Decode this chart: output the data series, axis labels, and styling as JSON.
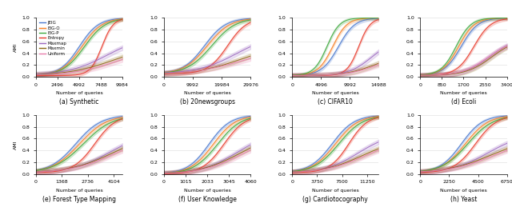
{
  "subplots": [
    {
      "label": "(a) Synthetic",
      "xlabel": "Number of queries",
      "xticks": [
        0,
        2496,
        4992,
        7488,
        9984
      ],
      "xmax": 9984
    },
    {
      "label": "(b) 20newsgroups",
      "xlabel": "Number of queries",
      "xticks": [
        0,
        9992,
        19984,
        29976
      ],
      "xmax": 29976
    },
    {
      "label": "(c) CIFAR10",
      "xlabel": "Number of queries",
      "xticks": [
        0,
        4996,
        9992,
        14988
      ],
      "xmax": 14988
    },
    {
      "label": "(d) Ecoli",
      "xlabel": "Number of queries",
      "xticks": [
        0,
        850,
        1700,
        2550,
        3400
      ],
      "xmax": 3400
    },
    {
      "label": "(e) Forest Type Mapping",
      "xlabel": "Number of queries",
      "xticks": [
        0,
        1368,
        2736,
        4104
      ],
      "xmax": 4560
    },
    {
      "label": "(f) User Knowledge",
      "xlabel": "Number of queries",
      "xticks": [
        0,
        1015,
        2033,
        3045,
        4060
      ],
      "xmax": 4060
    },
    {
      "label": "(g) Cardiotocography",
      "xlabel": "Number of queries",
      "xticks": [
        0,
        3750,
        7500,
        11250
      ],
      "xmax": 13000
    },
    {
      "label": "(h) Yeast",
      "xlabel": "Number of queries",
      "xticks": [
        0,
        2250,
        4500,
        6750
      ],
      "xmax": 6750
    }
  ],
  "methods": [
    "JEIG",
    "EIG-O",
    "EIG-P",
    "Entropy",
    "Maxmap",
    "Maxmin",
    "Uniform"
  ],
  "colors": {
    "JEIG": "#4878cf",
    "EIG-O": "#f87f22",
    "EIG-P": "#3ca73c",
    "Entropy": "#e8392a",
    "Maxmap": "#9b68c0",
    "Maxmin": "#8b6914",
    "Uniform": "#e87eac"
  },
  "ylim": [
    0.0,
    1.0
  ],
  "yticks": [
    0.0,
    0.2,
    0.4,
    0.6,
    0.8,
    1.0
  ],
  "subplot_params": [
    {
      "JEIG": [
        5000,
        0.0009,
        1.0,
        0.02
      ],
      "EIG-O": [
        5300,
        0.00085,
        1.0,
        0.02
      ],
      "EIG-P": [
        5600,
        0.00082,
        1.0,
        0.02
      ],
      "Entropy": [
        7600,
        0.0015,
        1.0,
        0.02
      ],
      "Maxmap": [
        8200,
        0.00045,
        0.7,
        0.03
      ],
      "Maxmin": [
        9000,
        0.00038,
        0.55,
        0.02
      ],
      "Uniform": [
        9300,
        0.0004,
        0.5,
        0.02
      ]
    },
    {
      "JEIG": [
        14000,
        0.00027,
        1.0,
        0.05
      ],
      "EIG-O": [
        15000,
        0.00025,
        1.0,
        0.05
      ],
      "EIG-P": [
        16500,
        0.00024,
        1.0,
        0.05
      ],
      "Entropy": [
        22000,
        0.0003,
        1.0,
        0.05
      ],
      "Maxmap": [
        25000,
        0.00015,
        0.73,
        0.05
      ],
      "Maxmin": [
        26500,
        0.00013,
        0.55,
        0.04
      ],
      "Uniform": [
        27000,
        0.00012,
        0.5,
        0.04
      ]
    },
    {
      "JEIG": [
        8000,
        0.0007,
        1.0,
        0.02
      ],
      "EIG-O": [
        7000,
        0.0008,
        1.0,
        0.02
      ],
      "EIG-P": [
        6000,
        0.0009,
        1.0,
        0.02
      ],
      "Entropy": [
        11500,
        0.001,
        1.0,
        0.02
      ],
      "Maxmap": [
        13800,
        0.0005,
        0.65,
        0.02
      ],
      "Maxmin": [
        14200,
        0.0004,
        0.38,
        0.02
      ],
      "Uniform": [
        14400,
        0.0004,
        0.35,
        0.02
      ]
    },
    {
      "JEIG": [
        1600,
        0.003,
        1.0,
        0.02
      ],
      "EIG-O": [
        1500,
        0.0032,
        1.0,
        0.02
      ],
      "EIG-P": [
        1400,
        0.0034,
        1.0,
        0.02
      ],
      "Entropy": [
        2100,
        0.003,
        1.0,
        0.02
      ],
      "Maxmap": [
        2700,
        0.002,
        0.65,
        0.02
      ],
      "Maxmin": [
        2800,
        0.002,
        0.65,
        0.02
      ],
      "Uniform": [
        2650,
        0.002,
        0.63,
        0.02
      ]
    },
    {
      "JEIG": [
        2100,
        0.0015,
        1.0,
        0.02
      ],
      "EIG-O": [
        2300,
        0.0014,
        1.0,
        0.02
      ],
      "EIG-P": [
        2500,
        0.0013,
        1.0,
        0.02
      ],
      "Entropy": [
        3100,
        0.0018,
        1.0,
        0.02
      ],
      "Maxmap": [
        3900,
        0.001,
        0.72,
        0.02
      ],
      "Maxmin": [
        4000,
        0.0009,
        0.68,
        0.02
      ],
      "Uniform": [
        4100,
        0.0009,
        0.65,
        0.02
      ]
    },
    {
      "JEIG": [
        2100,
        0.002,
        1.0,
        0.0
      ],
      "EIG-O": [
        2300,
        0.0019,
        1.0,
        0.0
      ],
      "EIG-P": [
        2500,
        0.0018,
        1.0,
        0.0
      ],
      "Entropy": [
        2800,
        0.002,
        1.0,
        0.0
      ],
      "Maxmap": [
        3400,
        0.0012,
        0.72,
        0.0
      ],
      "Maxmin": [
        3500,
        0.0011,
        0.68,
        0.0
      ],
      "Uniform": [
        3600,
        0.0011,
        0.65,
        0.0
      ]
    },
    {
      "JEIG": [
        6000,
        0.0006,
        1.0,
        0.02
      ],
      "EIG-O": [
        6500,
        0.00058,
        1.0,
        0.02
      ],
      "EIG-P": [
        7000,
        0.00055,
        1.0,
        0.02
      ],
      "Entropy": [
        8500,
        0.0007,
        1.0,
        0.02
      ],
      "Maxmap": [
        10000,
        0.0004,
        0.7,
        0.02
      ],
      "Maxmin": [
        10500,
        0.00035,
        0.6,
        0.02
      ],
      "Uniform": [
        10800,
        0.00035,
        0.58,
        0.02
      ]
    },
    {
      "JEIG": [
        3200,
        0.0012,
        1.0,
        0.02
      ],
      "EIG-O": [
        3500,
        0.0011,
        1.0,
        0.02
      ],
      "EIG-P": [
        3700,
        0.001,
        1.0,
        0.02
      ],
      "Entropy": [
        4300,
        0.0012,
        1.0,
        0.02
      ],
      "Maxmap": [
        5300,
        0.0007,
        0.7,
        0.02
      ],
      "Maxmin": [
        5500,
        0.0006,
        0.62,
        0.02
      ],
      "Uniform": [
        5700,
        0.0006,
        0.6,
        0.02
      ]
    }
  ]
}
